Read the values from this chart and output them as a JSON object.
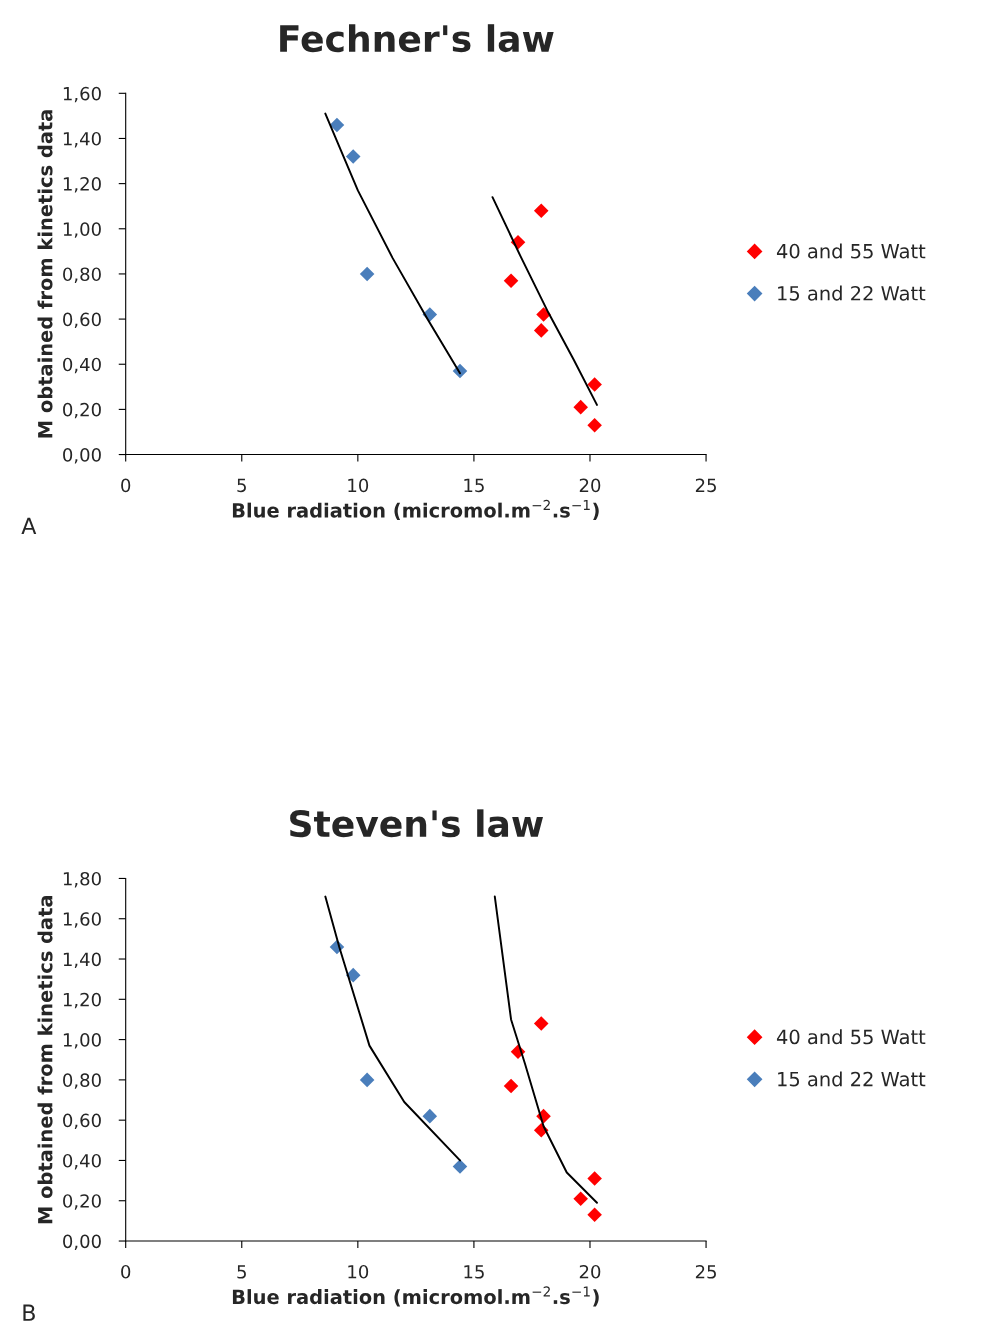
{
  "chart_data": [
    {
      "type": "scatter",
      "title": "Fechner's law",
      "xlabel": "Blue radiation (micromol.m$^{−2}$.s$^{−1}$)",
      "ylabel": "M obtained from kinetics data",
      "annotations": [
        "A"
      ],
      "xlim": [
        0,
        25
      ],
      "xticks": [
        0,
        5,
        10,
        15,
        20,
        25
      ],
      "ylim": [
        0,
        1.6
      ],
      "yticks": [
        {
          "value": 0,
          "label": "0,00"
        },
        {
          "value": 0.2,
          "label": "0,20"
        },
        {
          "value": 0.4,
          "label": "0,40"
        },
        {
          "value": 0.6,
          "label": "0,60"
        },
        {
          "value": 0.8,
          "label": "0,80"
        },
        {
          "value": 1.0,
          "label": "1,00"
        },
        {
          "value": 1.2,
          "label": "1,20"
        },
        {
          "value": 1.4,
          "label": "1,40"
        },
        {
          "value": 1.6,
          "label": "1,60"
        }
      ],
      "marker": "diamond",
      "grid": false,
      "legend": "right",
      "series": [
        {
          "name": "40 and 55 Watt",
          "color": "#ff0000",
          "x": [
            16.6,
            16.9,
            17.9,
            18.0,
            17.9,
            20.2,
            19.6,
            20.2
          ],
          "values": [
            0.77,
            0.94,
            1.08,
            0.62,
            0.55,
            0.31,
            0.21,
            0.13
          ]
        },
        {
          "name": "15 and 22 Watt",
          "color": "#4a7ebb",
          "x": [
            9.1,
            9.8,
            10.4,
            13.1,
            14.4
          ],
          "values": [
            1.46,
            1.32,
            0.8,
            0.62,
            0.37
          ]
        },
        {
          "type": "line",
          "marker": "none",
          "color": "#000000",
          "x": [
            8.6,
            10,
            11.5,
            13,
            14.4
          ],
          "values": [
            1.51,
            1.17,
            0.87,
            0.6,
            0.36
          ]
        },
        {
          "type": "line",
          "marker": "none",
          "color": "#000000",
          "x": [
            15.8,
            17,
            18.2,
            19.3,
            20.3
          ],
          "values": [
            1.14,
            0.88,
            0.63,
            0.42,
            0.22
          ]
        }
      ]
    },
    {
      "type": "scatter",
      "title": "Steven's law",
      "xlabel": "Blue radiation (micromol.m$^{−2}$.s$^{−1}$)",
      "ylabel": "M obtained from kinetics data",
      "annotations": [
        "B"
      ],
      "xlim": [
        0,
        25
      ],
      "xticks": [
        0,
        5,
        10,
        15,
        20,
        25
      ],
      "ylim": [
        0,
        1.8
      ],
      "yticks": [
        {
          "value": 0,
          "label": "0,00"
        },
        {
          "value": 0.2,
          "label": "0,20"
        },
        {
          "value": 0.4,
          "label": "0,40"
        },
        {
          "value": 0.6,
          "label": "0,60"
        },
        {
          "value": 0.8,
          "label": "0,80"
        },
        {
          "value": 1.0,
          "label": "1,00"
        },
        {
          "value": 1.2,
          "label": "1,20"
        },
        {
          "value": 1.4,
          "label": "1,40"
        },
        {
          "value": 1.6,
          "label": "1,60"
        },
        {
          "value": 1.8,
          "label": "1,80"
        }
      ],
      "marker": "diamond",
      "grid": false,
      "legend": "right",
      "series": [
        {
          "name": "40 and 55 Watt",
          "color": "#ff0000",
          "x": [
            16.6,
            16.9,
            17.9,
            18.0,
            17.9,
            20.2,
            19.6,
            20.2
          ],
          "values": [
            0.77,
            0.94,
            1.08,
            0.62,
            0.55,
            0.31,
            0.21,
            0.13
          ]
        },
        {
          "name": "15 and 22 Watt",
          "color": "#4a7ebb",
          "x": [
            9.1,
            9.8,
            10.4,
            13.1,
            14.4
          ],
          "values": [
            1.46,
            1.32,
            0.8,
            0.62,
            0.37
          ]
        },
        {
          "type": "line",
          "marker": "none",
          "color": "#000000",
          "x": [
            8.6,
            9.2,
            10.5,
            12.0,
            14.4
          ],
          "values": [
            1.71,
            1.46,
            0.97,
            0.69,
            0.4
          ]
        },
        {
          "type": "line",
          "marker": "none",
          "color": "#000000",
          "x": [
            15.9,
            16.6,
            17.2,
            18.0,
            19.0,
            20.3
          ],
          "values": [
            1.71,
            1.1,
            0.88,
            0.57,
            0.34,
            0.19
          ]
        }
      ]
    }
  ]
}
